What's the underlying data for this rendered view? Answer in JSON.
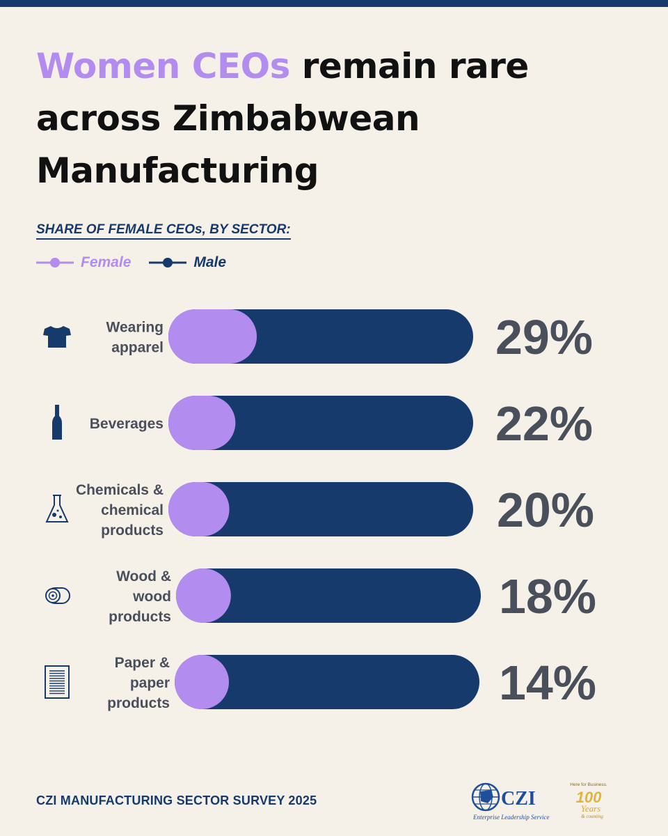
{
  "title": {
    "highlight": "Women CEOs",
    "rest": " remain rare across Zimbabwean Manufacturing"
  },
  "subtitle": "SHARE OF FEMALE CEOs, BY SECTOR:",
  "legend": {
    "female": "Female",
    "male": "Male"
  },
  "colors": {
    "female": "#b38cf0",
    "male": "#163a6b",
    "percent_text": "#4a4f5c",
    "background": "#f5f0e8"
  },
  "chart_data": {
    "type": "bar",
    "orientation": "horizontal",
    "stacked": true,
    "categories": [
      [
        "Wearing",
        "apparel"
      ],
      [
        "Beverages"
      ],
      [
        "Chemicals &",
        "chemical",
        "products"
      ],
      [
        "Wood &",
        "wood",
        "products"
      ],
      [
        "Paper &",
        "paper",
        "products"
      ]
    ],
    "icons": [
      "tshirt-icon",
      "bottle-icon",
      "flask-icon",
      "log-icon",
      "document-icon"
    ],
    "series": [
      {
        "name": "Female",
        "values": [
          29,
          22,
          20,
          18,
          14
        ]
      },
      {
        "name": "Male",
        "values": [
          71,
          78,
          80,
          82,
          86
        ]
      }
    ],
    "value_labels": [
      "29%",
      "22%",
      "20%",
      "18%",
      "14%"
    ],
    "xlim": [
      0,
      100
    ]
  },
  "footer": "CZI MANUFACTURING SECTOR SURVEY 2025",
  "logos": {
    "czi_name": "CZI",
    "czi_tagline": "Enterprise Leadership Service",
    "anniversary_tagline": "Here for Business.",
    "anniversary_number": "100",
    "anniversary_years": "Years",
    "anniversary_word": "& counting"
  }
}
